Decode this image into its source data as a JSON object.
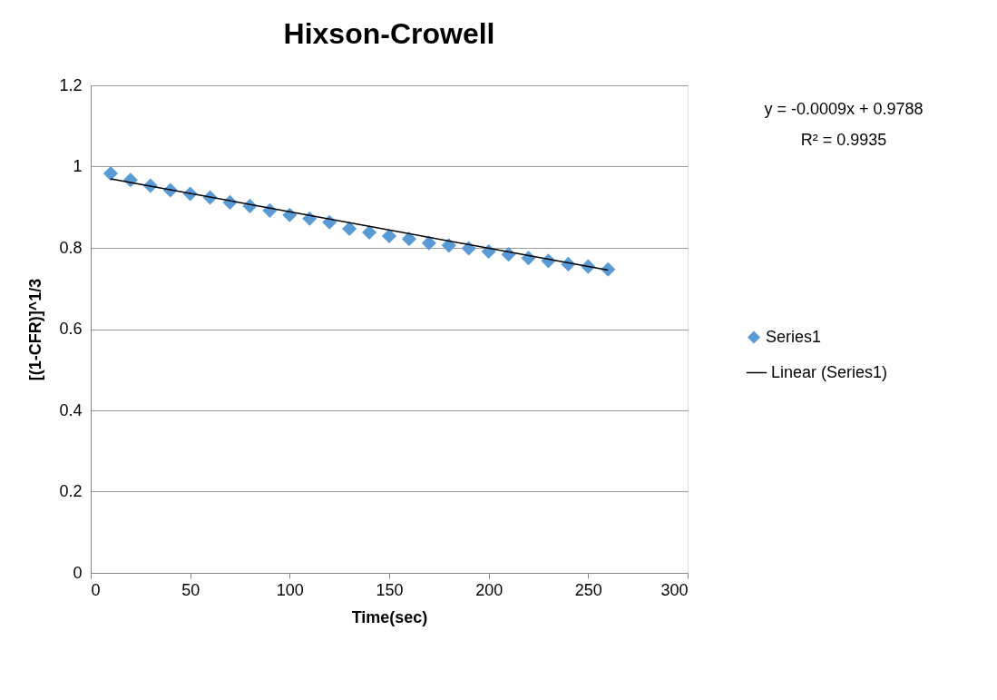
{
  "chart_data": {
    "type": "scatter",
    "title": "Hixson-Crowell",
    "xlabel": "Time(sec)",
    "ylabel": "[(1-CFR)]^1/3",
    "xlim": [
      0,
      300
    ],
    "xticks": [
      0,
      50,
      100,
      150,
      200,
      250,
      300
    ],
    "ylim": [
      0,
      1.2
    ],
    "yticks": [
      0,
      0.2,
      0.4,
      0.6,
      0.8,
      1,
      1.2
    ],
    "grid": "y",
    "legend": "right",
    "annotations": [
      "y = -0.0009x + 0.9788",
      "R² = 0.9935"
    ],
    "series": [
      {
        "name": "Series1",
        "marker": "diamond",
        "color": "#5b9bd5",
        "x": [
          10,
          20,
          30,
          40,
          50,
          60,
          70,
          80,
          90,
          100,
          110,
          120,
          130,
          140,
          150,
          160,
          170,
          180,
          190,
          200,
          210,
          220,
          230,
          240,
          250,
          260
        ],
        "values": [
          0.983,
          0.967,
          0.953,
          0.942,
          0.933,
          0.924,
          0.912,
          0.903,
          0.892,
          0.881,
          0.872,
          0.863,
          0.847,
          0.838,
          0.829,
          0.822,
          0.812,
          0.806,
          0.799,
          0.791,
          0.784,
          0.775,
          0.768,
          0.76,
          0.754,
          0.747
        ]
      },
      {
        "name": "Linear (Series1)",
        "type": "line",
        "line_style": "solid",
        "color": "#000000",
        "x": [
          10,
          260
        ],
        "values": [
          0.97,
          0.745
        ]
      }
    ]
  }
}
